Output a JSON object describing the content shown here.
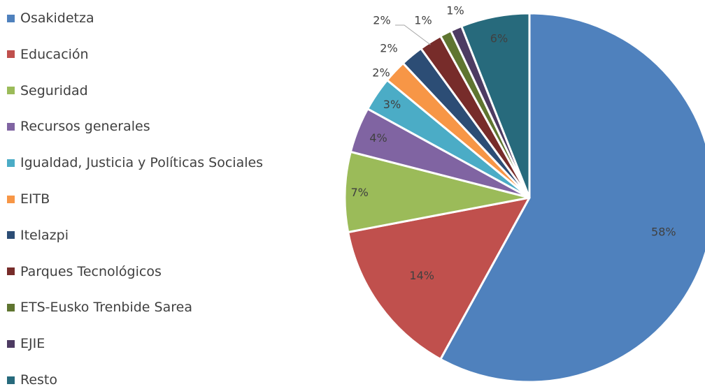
{
  "chart_data": {
    "type": "pie",
    "title": "",
    "legend_position": "left",
    "categories": [
      "Osakidetza",
      "Educación",
      "Seguridad",
      "Recursos generales",
      "Igualdad, Justicia y Políticas Sociales",
      "EITB",
      "Itelazpi",
      "Parques Tecnológicos",
      "ETS-Eusko Trenbide Sarea",
      "EJIE",
      "Resto"
    ],
    "values": [
      58,
      14,
      7,
      4,
      3,
      2,
      2,
      2,
      1,
      1,
      6
    ],
    "data_labels": [
      "58%",
      "14%",
      "7%",
      "4%",
      "3%",
      "2%",
      "2%",
      "2%",
      "1%",
      "1%",
      "6%"
    ],
    "colors": [
      "#4F81BD",
      "#C0504D",
      "#9BBB59",
      "#8064A2",
      "#4BACC6",
      "#F79646",
      "#2C4D75",
      "#772C2A",
      "#5F7530",
      "#4D3B62",
      "#276A7C"
    ]
  }
}
